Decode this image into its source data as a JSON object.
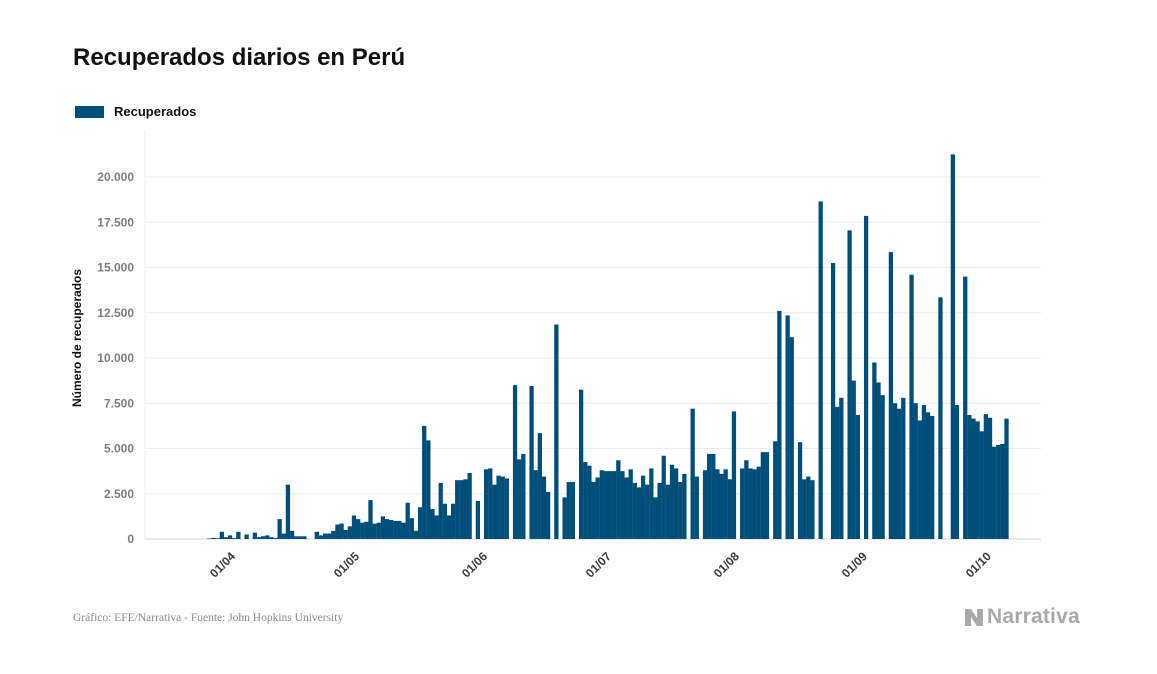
{
  "chart_data": {
    "type": "bar",
    "title": "Recuperados diarios en Perú",
    "ylabel": "Número de recuperados",
    "xlabel": "",
    "ylim": [
      0,
      22500
    ],
    "yticks": [
      0,
      2500,
      5000,
      7500,
      10000,
      12500,
      15000,
      17500,
      20000
    ],
    "ytick_labels": [
      "0",
      "2.500",
      "5.000",
      "7.500",
      "10.000",
      "12.500",
      "15.000",
      "17.500",
      "20.000"
    ],
    "xtick_labels": [
      "01/04",
      "01/05",
      "01/06",
      "01/07",
      "01/08",
      "01/09",
      "01/10"
    ],
    "xtick_days": [
      15,
      45,
      76,
      106,
      137,
      168,
      198
    ],
    "grid": true,
    "legend": "top-left",
    "series": [
      {
        "name": "Recuperados",
        "color": "#004e7a",
        "start_date": "2020-03-17",
        "values": [
          0,
          0,
          0,
          0,
          0,
          0,
          0,
          0,
          0,
          0,
          30,
          60,
          40,
          400,
          100,
          200,
          50,
          400,
          0,
          250,
          0,
          350,
          100,
          150,
          200,
          100,
          50,
          1100,
          300,
          3000,
          450,
          150,
          150,
          150,
          0,
          0,
          400,
          200,
          300,
          300,
          450,
          800,
          850,
          500,
          700,
          1300,
          1100,
          900,
          950,
          2150,
          850,
          900,
          1250,
          1100,
          1050,
          1000,
          1000,
          900,
          2000,
          1150,
          450,
          1750,
          6250,
          5450,
          1650,
          1300,
          3100,
          1950,
          1300,
          1950,
          3250,
          3250,
          3300,
          3650,
          0,
          2100,
          0,
          3850,
          3900,
          3000,
          3500,
          3450,
          3350,
          0,
          8500,
          4400,
          4700,
          0,
          8450,
          3800,
          5850,
          3450,
          2600,
          0,
          11850,
          0,
          2300,
          3150,
          3150,
          0,
          8250,
          4250,
          4050,
          3150,
          3400,
          3800,
          3750,
          3750,
          3750,
          4350,
          3750,
          3400,
          3850,
          3100,
          2850,
          3500,
          3000,
          3900,
          2300,
          3100,
          4600,
          3000,
          4100,
          3900,
          3150,
          3600,
          0,
          7200,
          3450,
          0,
          3800,
          4700,
          4700,
          3850,
          3600,
          3850,
          3300,
          7050,
          0,
          3900,
          4350,
          3900,
          3850,
          4000,
          4800,
          4800,
          0,
          5400,
          12600,
          0,
          12350,
          11150,
          0,
          5350,
          3300,
          3450,
          3250,
          0,
          18650,
          0,
          0,
          15250,
          7300,
          7800,
          0,
          17050,
          8750,
          6850,
          0,
          17850,
          0,
          9750,
          8650,
          7950,
          0,
          15850,
          7500,
          7200,
          7800,
          0,
          14600,
          7500,
          6550,
          7400,
          7000,
          6800,
          0,
          13350,
          0,
          0,
          21250,
          7400,
          0,
          14500,
          6850,
          6650,
          6500,
          5950,
          6900,
          6700,
          5100,
          5200,
          5250,
          6650
        ]
      }
    ]
  },
  "footer": {
    "source": "Gráfico: EFE/Narrativa - Fuente: John Hopkins University",
    "brand": "Narrativa"
  }
}
